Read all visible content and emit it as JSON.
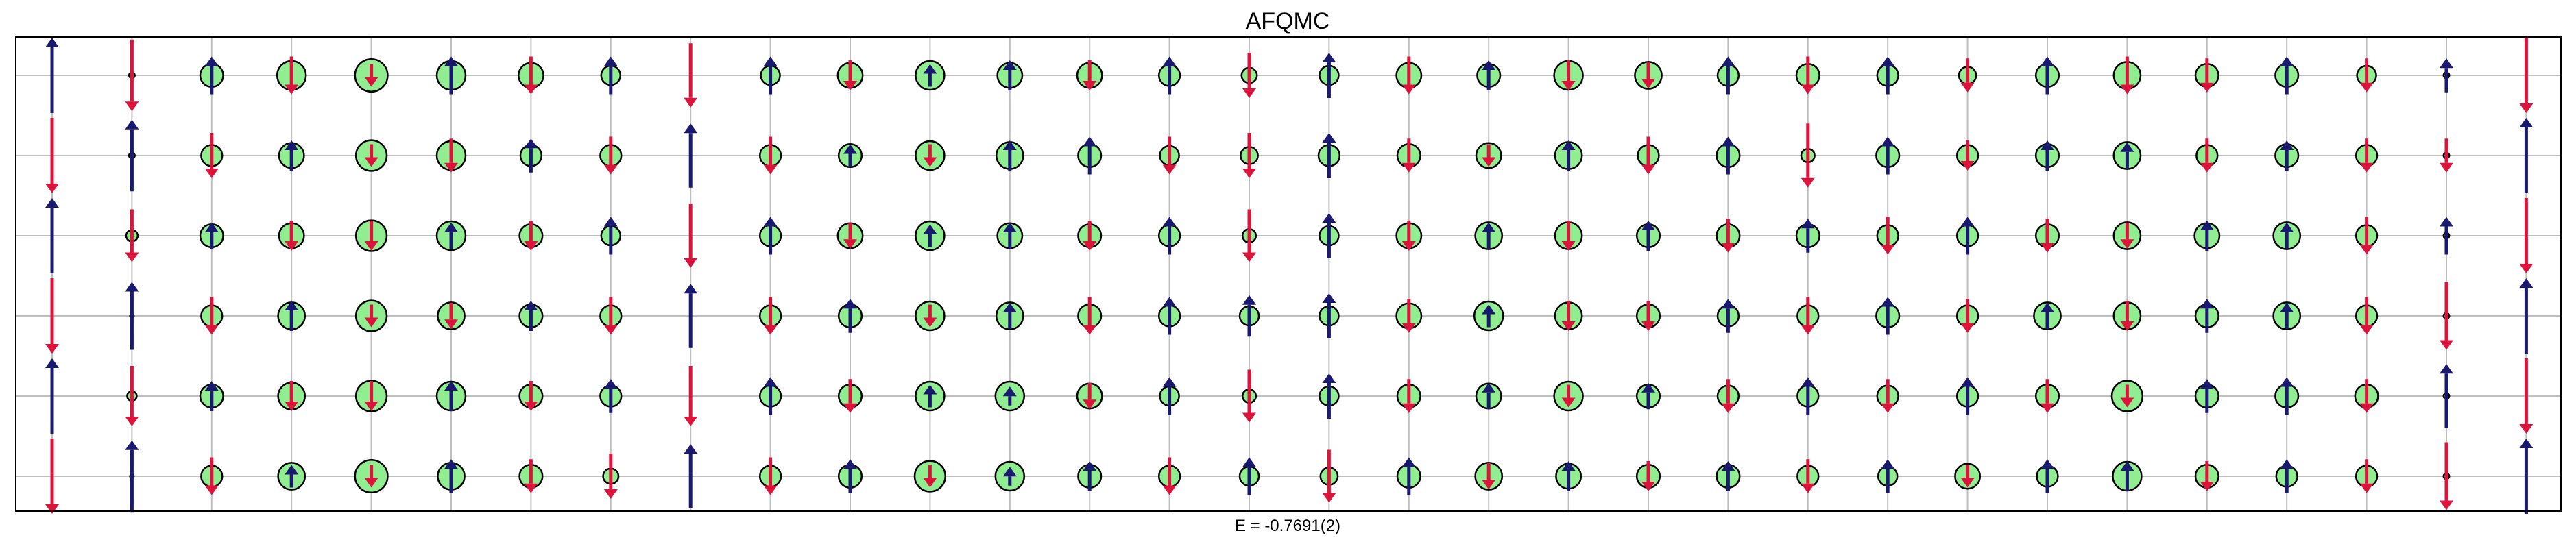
{
  "chart_data": {
    "type": "lattice",
    "title": "AFQMC",
    "xlabel": "E = -0.7691(2)",
    "ylabel": "",
    "grid": true,
    "legend": "none",
    "n_cols": 32,
    "n_rows": 6,
    "row_order": "top-to-bottom",
    "colors": {
      "up_arrow": "#191970",
      "down_arrow": "#dc143c",
      "circle_fill": "#90ee90",
      "circle_stroke": "#000000",
      "grid": "#bfbfbf",
      "frame": "#000000"
    },
    "spin_z": [
      [
        1.0,
        -0.95,
        0.5,
        -0.5,
        -0.3,
        0.5,
        -0.5,
        0.5,
        -0.85,
        0.5,
        -0.4,
        0.3,
        0.4,
        -0.4,
        0.5,
        -0.6,
        0.6,
        -0.5,
        0.4,
        -0.4,
        -0.35,
        0.5,
        -0.5,
        0.5,
        -0.45,
        0.5,
        -0.5,
        -0.45,
        0.5,
        -0.45,
        0.45,
        -1.0
      ],
      [
        -1.0,
        0.95,
        -0.6,
        0.4,
        -0.3,
        -0.45,
        0.45,
        -0.5,
        0.85,
        -0.5,
        0.3,
        -0.3,
        0.4,
        0.5,
        -0.5,
        -0.6,
        0.6,
        -0.45,
        -0.3,
        0.4,
        -0.5,
        0.5,
        -0.85,
        0.5,
        -0.4,
        0.4,
        0.35,
        -0.45,
        0.4,
        -0.45,
        -0.45,
        1.0
      ],
      [
        1.0,
        -0.7,
        0.35,
        -0.4,
        -0.4,
        0.35,
        -0.4,
        0.5,
        -0.85,
        0.5,
        -0.35,
        0.3,
        0.35,
        -0.4,
        0.5,
        -0.7,
        0.6,
        -0.4,
        0.35,
        -0.4,
        0.4,
        -0.45,
        0.45,
        -0.5,
        0.5,
        -0.45,
        -0.35,
        0.4,
        0.35,
        -0.5,
        0.5,
        -1.0
      ],
      [
        -1.0,
        0.9,
        -0.5,
        0.4,
        -0.3,
        -0.35,
        0.4,
        -0.5,
        0.85,
        -0.5,
        0.45,
        -0.3,
        0.35,
        -0.5,
        0.5,
        0.55,
        0.6,
        -0.45,
        0.3,
        -0.4,
        -0.4,
        0.45,
        -0.5,
        0.5,
        -0.45,
        0.35,
        -0.4,
        0.45,
        0.35,
        -0.5,
        -0.9,
        1.0
      ],
      [
        1.0,
        -0.8,
        0.4,
        -0.4,
        -0.4,
        0.4,
        -0.4,
        0.45,
        -0.8,
        0.5,
        -0.45,
        0.3,
        0.25,
        -0.35,
        0.5,
        -0.7,
        0.6,
        -0.45,
        0.35,
        -0.3,
        0.35,
        -0.45,
        0.5,
        -0.45,
        0.5,
        -0.45,
        -0.3,
        0.45,
        0.5,
        -0.45,
        0.85,
        -1.0
      ],
      [
        -1.0,
        0.95,
        -0.5,
        0.3,
        -0.3,
        0.45,
        -0.45,
        -0.6,
        0.85,
        -0.5,
        0.45,
        -0.3,
        0.25,
        0.4,
        -0.5,
        0.5,
        -0.7,
        0.5,
        -0.35,
        0.4,
        -0.4,
        0.4,
        -0.45,
        0.45,
        -0.3,
        0.45,
        0.4,
        -0.4,
        0.45,
        -0.45,
        -0.9,
        1.0
      ]
    ],
    "charge": [
      [
        0.0,
        0.15,
        0.6,
        0.75,
        0.85,
        0.75,
        0.65,
        0.5,
        0.0,
        0.5,
        0.65,
        0.75,
        0.65,
        0.65,
        0.55,
        0.4,
        0.5,
        0.65,
        0.6,
        0.75,
        0.7,
        0.55,
        0.6,
        0.55,
        0.45,
        0.6,
        0.7,
        0.6,
        0.6,
        0.5,
        0.15,
        0.0
      ],
      [
        0.0,
        0.15,
        0.55,
        0.65,
        0.8,
        0.75,
        0.55,
        0.55,
        0.0,
        0.55,
        0.6,
        0.75,
        0.7,
        0.6,
        0.5,
        0.45,
        0.55,
        0.6,
        0.65,
        0.7,
        0.55,
        0.6,
        0.35,
        0.6,
        0.55,
        0.6,
        0.7,
        0.55,
        0.6,
        0.55,
        0.15,
        0.0
      ],
      [
        0.0,
        0.3,
        0.6,
        0.65,
        0.8,
        0.75,
        0.6,
        0.5,
        0.0,
        0.55,
        0.65,
        0.75,
        0.65,
        0.6,
        0.55,
        0.35,
        0.5,
        0.65,
        0.7,
        0.7,
        0.6,
        0.6,
        0.6,
        0.55,
        0.55,
        0.6,
        0.7,
        0.65,
        0.7,
        0.55,
        0.15,
        0.0
      ],
      [
        0.0,
        0.1,
        0.55,
        0.7,
        0.8,
        0.7,
        0.6,
        0.55,
        0.0,
        0.55,
        0.6,
        0.75,
        0.7,
        0.6,
        0.55,
        0.5,
        0.5,
        0.65,
        0.75,
        0.7,
        0.6,
        0.55,
        0.55,
        0.6,
        0.55,
        0.7,
        0.7,
        0.6,
        0.7,
        0.55,
        0.15,
        0.0
      ],
      [
        0.0,
        0.25,
        0.6,
        0.7,
        0.8,
        0.75,
        0.6,
        0.55,
        0.0,
        0.55,
        0.6,
        0.75,
        0.75,
        0.65,
        0.5,
        0.35,
        0.5,
        0.6,
        0.65,
        0.75,
        0.6,
        0.55,
        0.55,
        0.55,
        0.55,
        0.6,
        0.8,
        0.6,
        0.6,
        0.6,
        0.15,
        0.0
      ],
      [
        0.0,
        0.1,
        0.55,
        0.7,
        0.85,
        0.7,
        0.6,
        0.4,
        0.0,
        0.55,
        0.6,
        0.8,
        0.75,
        0.6,
        0.55,
        0.5,
        0.45,
        0.6,
        0.7,
        0.65,
        0.6,
        0.6,
        0.55,
        0.5,
        0.65,
        0.55,
        0.75,
        0.6,
        0.55,
        0.55,
        0.15,
        0.0
      ]
    ]
  }
}
